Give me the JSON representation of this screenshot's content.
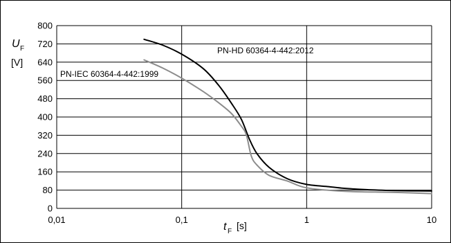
{
  "chart_data": {
    "type": "line",
    "xscale": "log",
    "xlim": [
      0.01,
      10
    ],
    "ylim": [
      0,
      800
    ],
    "grid": true,
    "x_ticks": [
      "0,01",
      "0,1",
      "1",
      "10"
    ],
    "x_tick_values": [
      0.01,
      0.1,
      1,
      10
    ],
    "y_ticks": [
      "0",
      "80",
      "160",
      "240",
      "320",
      "400",
      "480",
      "560",
      "640",
      "720",
      "800"
    ],
    "y_tick_values": [
      0,
      80,
      160,
      240,
      320,
      400,
      480,
      560,
      640,
      720,
      800
    ],
    "ylabel": {
      "symbol": "U",
      "subscript": "F",
      "unit": "[V]"
    },
    "xlabel": {
      "symbol": "t",
      "subscript": "F",
      "unit": "[s]"
    },
    "series": [
      {
        "name": "PN-HD 60364-4-442:2012",
        "color": "#000000",
        "points": [
          [
            0.05,
            740
          ],
          [
            0.07,
            715
          ],
          [
            0.1,
            675
          ],
          [
            0.15,
            610
          ],
          [
            0.2,
            535
          ],
          [
            0.25,
            460
          ],
          [
            0.3,
            390
          ],
          [
            0.35,
            300
          ],
          [
            0.4,
            240
          ],
          [
            0.5,
            180
          ],
          [
            0.7,
            130
          ],
          [
            1,
            105
          ],
          [
            1.5,
            95
          ],
          [
            2,
            88
          ],
          [
            3,
            82
          ],
          [
            5,
            78
          ],
          [
            10,
            76
          ]
        ]
      },
      {
        "name": "PN-IEC 60364-4-442:1999",
        "color": "#8c8c8c",
        "points": [
          [
            0.05,
            650
          ],
          [
            0.07,
            615
          ],
          [
            0.1,
            570
          ],
          [
            0.15,
            510
          ],
          [
            0.2,
            460
          ],
          [
            0.25,
            415
          ],
          [
            0.3,
            360
          ],
          [
            0.33,
            320
          ],
          [
            0.36,
            230
          ],
          [
            0.4,
            190
          ],
          [
            0.5,
            145
          ],
          [
            0.7,
            120
          ],
          [
            1,
            90
          ],
          [
            2,
            75
          ],
          [
            5,
            70
          ],
          [
            10,
            65
          ]
        ]
      }
    ]
  }
}
